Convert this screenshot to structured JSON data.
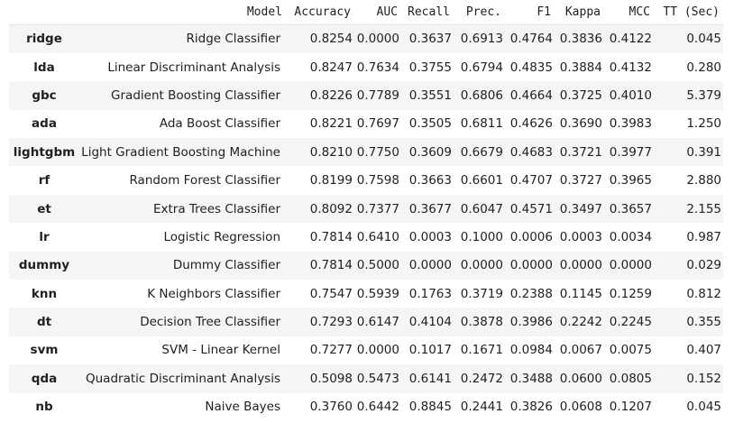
{
  "table": {
    "columns": [
      "",
      "Model",
      "Accuracy",
      "AUC",
      "Recall",
      "Prec.",
      "F1",
      "Kappa",
      "MCC",
      "TT (Sec)"
    ],
    "rows": [
      {
        "key": "ridge",
        "model": "Ridge Classifier",
        "accuracy": "0.8254",
        "auc": "0.0000",
        "recall": "0.3637",
        "prec": "0.6913",
        "f1": "0.4764",
        "kappa": "0.3836",
        "mcc": "0.4122",
        "tt": "0.045"
      },
      {
        "key": "lda",
        "model": "Linear Discriminant Analysis",
        "accuracy": "0.8247",
        "auc": "0.7634",
        "recall": "0.3755",
        "prec": "0.6794",
        "f1": "0.4835",
        "kappa": "0.3884",
        "mcc": "0.4132",
        "tt": "0.280"
      },
      {
        "key": "gbc",
        "model": "Gradient Boosting Classifier",
        "accuracy": "0.8226",
        "auc": "0.7789",
        "recall": "0.3551",
        "prec": "0.6806",
        "f1": "0.4664",
        "kappa": "0.3725",
        "mcc": "0.4010",
        "tt": "5.379"
      },
      {
        "key": "ada",
        "model": "Ada Boost Classifier",
        "accuracy": "0.8221",
        "auc": "0.7697",
        "recall": "0.3505",
        "prec": "0.6811",
        "f1": "0.4626",
        "kappa": "0.3690",
        "mcc": "0.3983",
        "tt": "1.250"
      },
      {
        "key": "lightgbm",
        "model": "Light Gradient Boosting Machine",
        "accuracy": "0.8210",
        "auc": "0.7750",
        "recall": "0.3609",
        "prec": "0.6679",
        "f1": "0.4683",
        "kappa": "0.3721",
        "mcc": "0.3977",
        "tt": "0.391"
      },
      {
        "key": "rf",
        "model": "Random Forest Classifier",
        "accuracy": "0.8199",
        "auc": "0.7598",
        "recall": "0.3663",
        "prec": "0.6601",
        "f1": "0.4707",
        "kappa": "0.3727",
        "mcc": "0.3965",
        "tt": "2.880"
      },
      {
        "key": "et",
        "model": "Extra Trees Classifier",
        "accuracy": "0.8092",
        "auc": "0.7377",
        "recall": "0.3677",
        "prec": "0.6047",
        "f1": "0.4571",
        "kappa": "0.3497",
        "mcc": "0.3657",
        "tt": "2.155"
      },
      {
        "key": "lr",
        "model": "Logistic Regression",
        "accuracy": "0.7814",
        "auc": "0.6410",
        "recall": "0.0003",
        "prec": "0.1000",
        "f1": "0.0006",
        "kappa": "0.0003",
        "mcc": "0.0034",
        "tt": "0.987"
      },
      {
        "key": "dummy",
        "model": "Dummy Classifier",
        "accuracy": "0.7814",
        "auc": "0.5000",
        "recall": "0.0000",
        "prec": "0.0000",
        "f1": "0.0000",
        "kappa": "0.0000",
        "mcc": "0.0000",
        "tt": "0.029"
      },
      {
        "key": "knn",
        "model": "K Neighbors Classifier",
        "accuracy": "0.7547",
        "auc": "0.5939",
        "recall": "0.1763",
        "prec": "0.3719",
        "f1": "0.2388",
        "kappa": "0.1145",
        "mcc": "0.1259",
        "tt": "0.812"
      },
      {
        "key": "dt",
        "model": "Decision Tree Classifier",
        "accuracy": "0.7293",
        "auc": "0.6147",
        "recall": "0.4104",
        "prec": "0.3878",
        "f1": "0.3986",
        "kappa": "0.2242",
        "mcc": "0.2245",
        "tt": "0.355"
      },
      {
        "key": "svm",
        "model": "SVM - Linear Kernel",
        "accuracy": "0.7277",
        "auc": "0.0000",
        "recall": "0.1017",
        "prec": "0.1671",
        "f1": "0.0984",
        "kappa": "0.0067",
        "mcc": "0.0075",
        "tt": "0.407"
      },
      {
        "key": "qda",
        "model": "Quadratic Discriminant Analysis",
        "accuracy": "0.5098",
        "auc": "0.5473",
        "recall": "0.6141",
        "prec": "0.2472",
        "f1": "0.3488",
        "kappa": "0.0600",
        "mcc": "0.0805",
        "tt": "0.152"
      },
      {
        "key": "nb",
        "model": "Naive Bayes",
        "accuracy": "0.3760",
        "auc": "0.6442",
        "recall": "0.8845",
        "prec": "0.2441",
        "f1": "0.3826",
        "kappa": "0.0608",
        "mcc": "0.1207",
        "tt": "0.045"
      }
    ]
  }
}
